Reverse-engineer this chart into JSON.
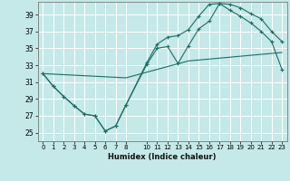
{
  "xlabel": "Humidex (Indice chaleur)",
  "bg_color": "#c5e8e8",
  "grid_color": "#ffffff",
  "line_color": "#1a6e64",
  "xlim": [
    -0.5,
    23.5
  ],
  "ylim": [
    24.0,
    40.5
  ],
  "yticks": [
    25,
    27,
    29,
    31,
    33,
    35,
    37,
    39
  ],
  "xticks": [
    0,
    1,
    2,
    3,
    4,
    5,
    6,
    7,
    8,
    10,
    11,
    12,
    13,
    14,
    15,
    16,
    17,
    18,
    19,
    20,
    21,
    22,
    23
  ],
  "xticklabels": [
    "0",
    "1",
    "2",
    "3",
    "4",
    "5",
    "6",
    "7",
    "8",
    "10",
    "11",
    "12",
    "13",
    "14",
    "15",
    "16",
    "17",
    "18",
    "19",
    "20",
    "21",
    "22",
    "23"
  ],
  "line1_x": [
    0,
    1,
    2,
    3,
    4,
    5,
    6,
    7,
    8,
    10,
    11,
    12,
    13,
    14,
    15,
    16,
    17,
    18,
    19,
    20,
    21,
    22,
    23
  ],
  "line1_y": [
    32.0,
    30.5,
    29.3,
    28.2,
    27.2,
    27.0,
    25.2,
    25.8,
    28.3,
    33.1,
    35.0,
    35.2,
    33.2,
    35.3,
    37.3,
    38.2,
    40.3,
    40.2,
    39.8,
    39.1,
    38.5,
    37.0,
    35.8
  ],
  "line2_x": [
    0,
    1,
    2,
    3,
    4,
    5,
    6,
    7,
    8,
    10,
    11,
    12,
    13,
    14,
    15,
    16,
    17,
    18,
    19,
    20,
    21,
    22,
    23
  ],
  "line2_y": [
    32.0,
    30.5,
    29.3,
    28.2,
    27.2,
    27.0,
    25.2,
    25.8,
    28.3,
    33.3,
    35.5,
    36.3,
    36.5,
    37.2,
    38.8,
    40.2,
    40.3,
    39.5,
    38.8,
    38.0,
    37.0,
    35.8,
    32.5
  ],
  "line3_x": [
    0,
    8,
    14,
    23
  ],
  "line3_y": [
    32.0,
    31.5,
    33.5,
    34.5
  ]
}
